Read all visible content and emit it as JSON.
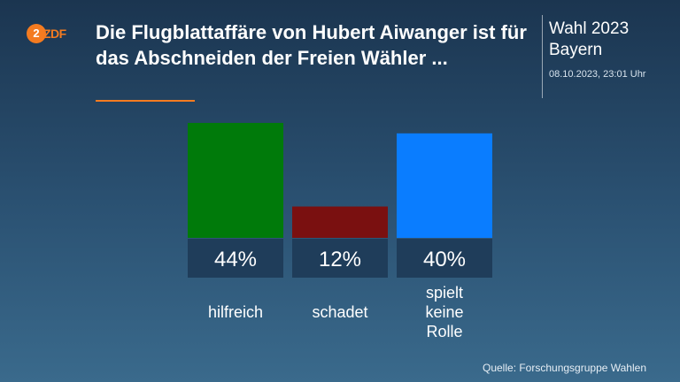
{
  "header": {
    "logo_text": "ZDF",
    "headline": "Die Flugblattaffäre von Hubert Aiwanger ist für das Abschneiden der Freien Wähler ..."
  },
  "sidebar": {
    "title": "Wahl 2023",
    "subtitle": "Bayern",
    "timestamp": "08.10.2023, 23:01 Uhr"
  },
  "colors": {
    "accent": "#f47b20",
    "value_box": "#1f3d5a"
  },
  "chart_data": {
    "type": "bar",
    "title": "",
    "xlabel": "",
    "ylabel": "",
    "ylim": [
      0,
      100
    ],
    "grid": false,
    "categories": [
      "hilfreich",
      "schadet",
      "spielt keine Rolle"
    ],
    "values": [
      44,
      12,
      40
    ],
    "value_labels": [
      "44%",
      "12%",
      "40%"
    ],
    "colors": [
      "#007a0a",
      "#7a1010",
      "#0a7dff"
    ]
  },
  "footer": {
    "source": "Quelle: Forschungsgruppe Wahlen"
  }
}
